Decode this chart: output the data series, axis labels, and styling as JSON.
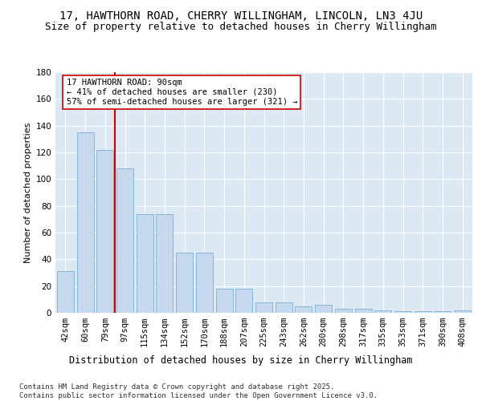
{
  "title1": "17, HAWTHORN ROAD, CHERRY WILLINGHAM, LINCOLN, LN3 4JU",
  "title2": "Size of property relative to detached houses in Cherry Willingham",
  "xlabel": "Distribution of detached houses by size in Cherry Willingham",
  "ylabel": "Number of detached properties",
  "categories": [
    "42sqm",
    "60sqm",
    "79sqm",
    "97sqm",
    "115sqm",
    "134sqm",
    "152sqm",
    "170sqm",
    "188sqm",
    "207sqm",
    "225sqm",
    "243sqm",
    "262sqm",
    "280sqm",
    "298sqm",
    "317sqm",
    "335sqm",
    "353sqm",
    "371sqm",
    "390sqm",
    "408sqm"
  ],
  "bar_values": [
    31,
    135,
    122,
    108,
    74,
    74,
    45,
    45,
    18,
    18,
    8,
    8,
    5,
    6,
    3,
    3,
    2,
    1,
    1,
    1,
    2
  ],
  "bar_color": "#c5d8ed",
  "bar_edge_color": "#7aafd4",
  "vline_x": 2.5,
  "vline_color": "#cc0000",
  "annotation_text": "17 HAWTHORN ROAD: 90sqm\n← 41% of detached houses are smaller (230)\n57% of semi-detached houses are larger (321) →",
  "annotation_box_color": "#ffffff",
  "annotation_box_edge": "#cc0000",
  "ylim": [
    0,
    180
  ],
  "yticks": [
    0,
    20,
    40,
    60,
    80,
    100,
    120,
    140,
    160,
    180
  ],
  "footer": "Contains HM Land Registry data © Crown copyright and database right 2025.\nContains public sector information licensed under the Open Government Licence v3.0.",
  "background_color": "#ffffff",
  "plot_bg_color": "#dce9f5",
  "grid_color": "#ffffff",
  "title1_fontsize": 10,
  "title2_fontsize": 9,
  "xlabel_fontsize": 8.5,
  "ylabel_fontsize": 8,
  "tick_fontsize": 7.5,
  "footer_fontsize": 6.5,
  "annotation_fontsize": 7.5
}
